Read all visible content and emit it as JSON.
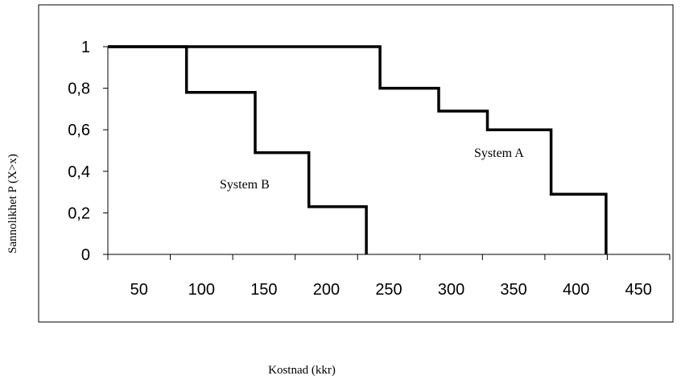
{
  "chart_data": {
    "type": "line",
    "step": true,
    "xlabel": "Kostnad (kkr)",
    "ylabel": "Sannolikhet P (X>x)",
    "xlim": [
      25,
      475
    ],
    "ylim": [
      0,
      1
    ],
    "x_tick_labels": [
      "50",
      "100",
      "150",
      "200",
      "250",
      "300",
      "350",
      "400",
      "450"
    ],
    "y_tick_labels": [
      "0",
      "0,2",
      "0,4",
      "0,6",
      "0,8",
      "1"
    ],
    "y_ticks": [
      0,
      0.2,
      0.4,
      0.6,
      0.8,
      1
    ],
    "grid": false,
    "legend": "none",
    "series": [
      {
        "name": "System A",
        "x": [
          25,
          243,
          243,
          290,
          290,
          329,
          329,
          380,
          380,
          424,
          424
        ],
        "y": [
          1,
          1,
          0.8,
          0.8,
          0.69,
          0.69,
          0.6,
          0.6,
          0.29,
          0.29,
          0
        ]
      },
      {
        "name": "System B",
        "x": [
          25,
          88,
          88,
          143,
          143,
          186,
          186,
          232,
          232
        ],
        "y": [
          1,
          1,
          0.78,
          0.78,
          0.49,
          0.49,
          0.23,
          0.23,
          0
        ]
      }
    ],
    "line_color": "#000000"
  }
}
